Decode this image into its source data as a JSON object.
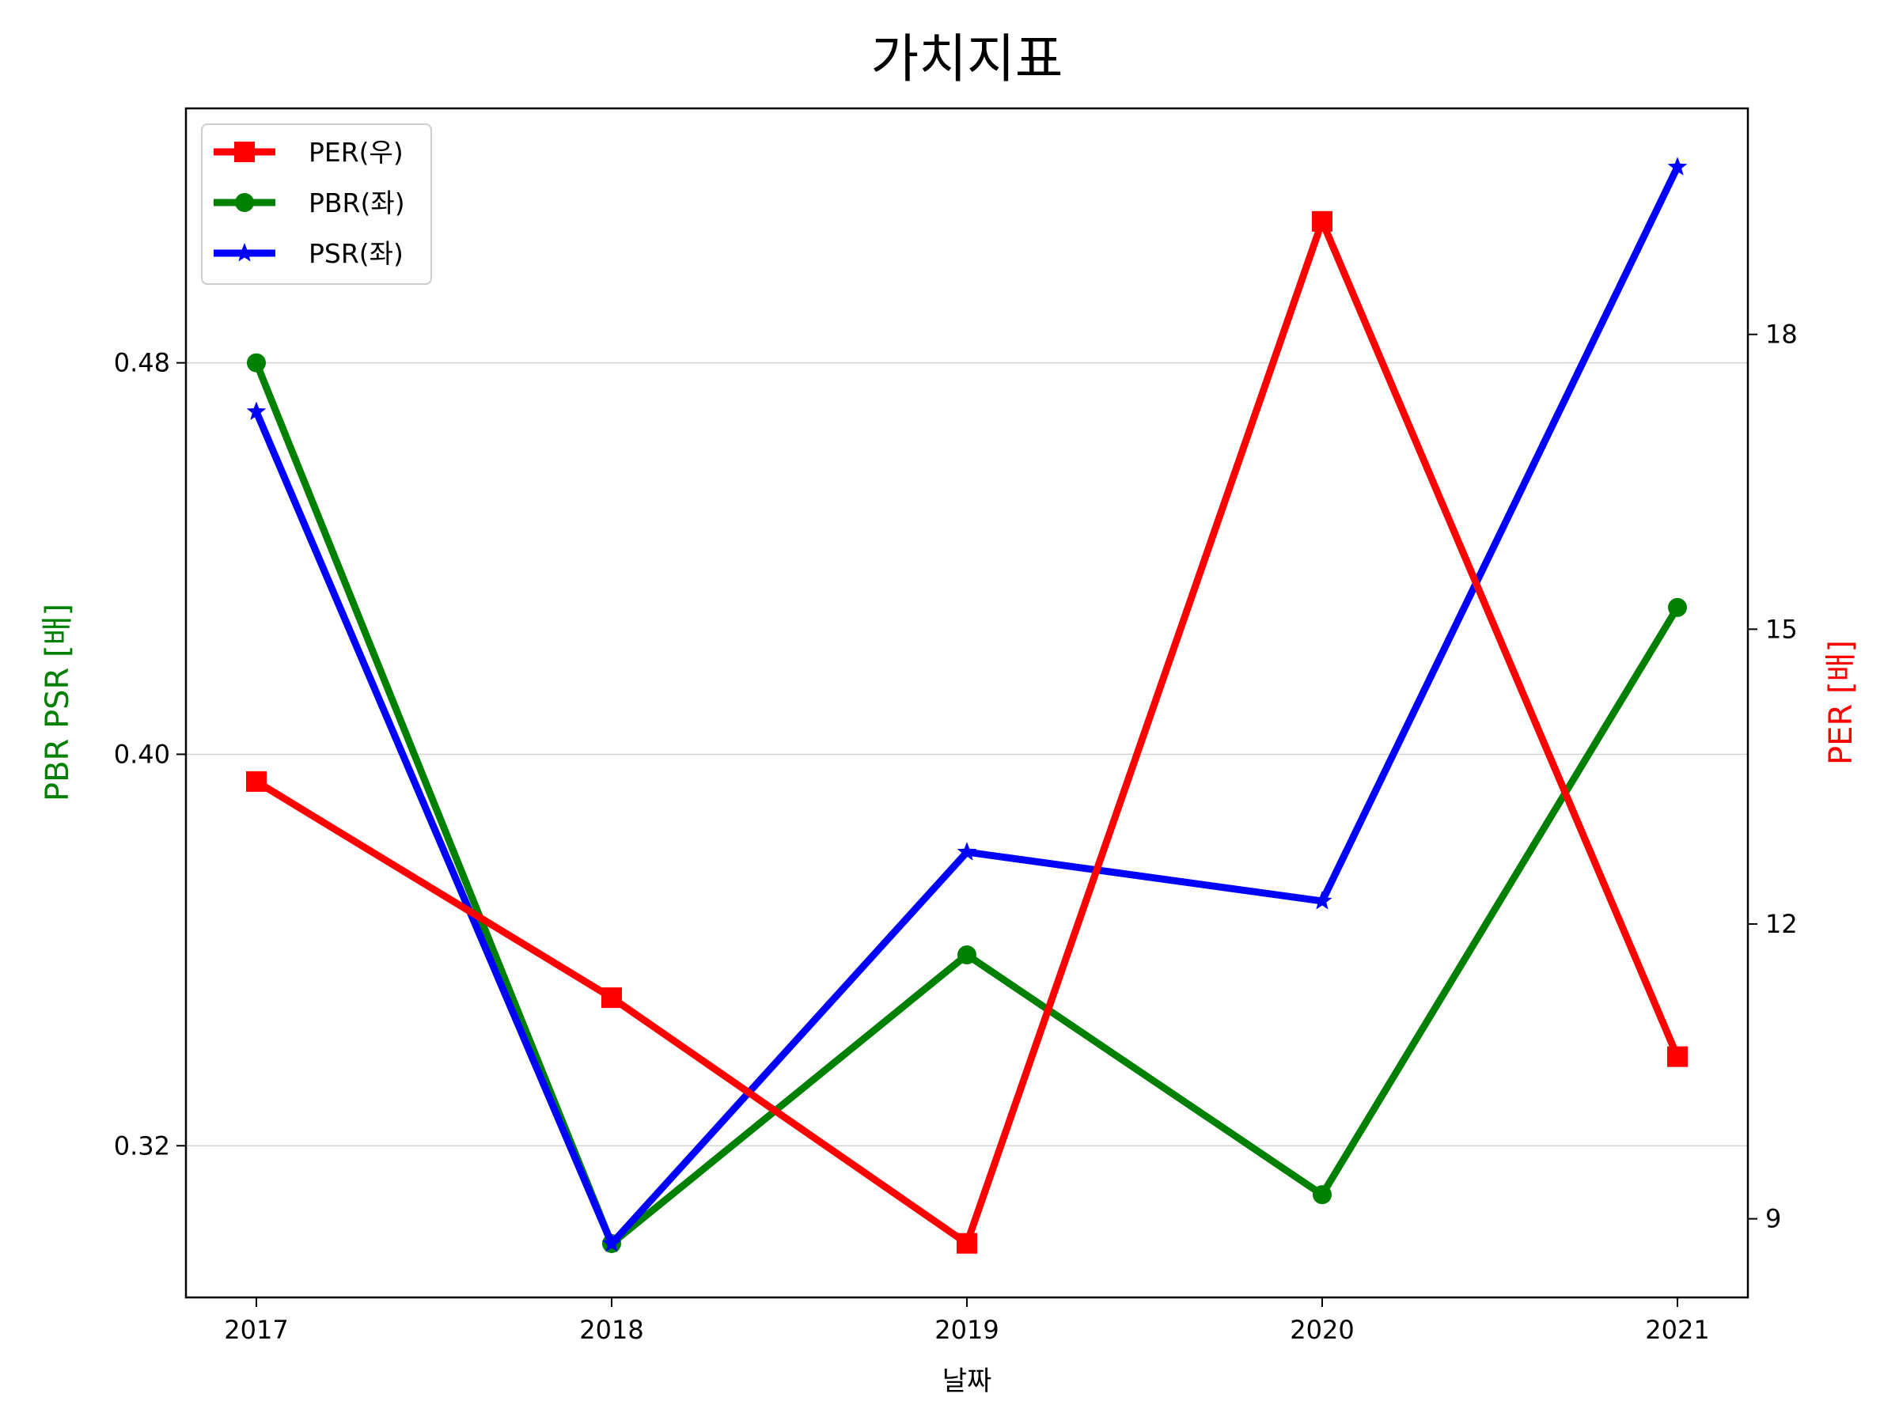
{
  "chart_data": {
    "type": "line",
    "title": "가치지표",
    "xlabel": "날짜",
    "ylabel_left": "PBR PSR [배]",
    "ylabel_right": "PER [배]",
    "colors": {
      "ylabel_left": "#008000",
      "ylabel_right": "#ff0000"
    },
    "categories": [
      "2017",
      "2018",
      "2019",
      "2020",
      "2021"
    ],
    "ylim_left": [
      0.289,
      0.532
    ],
    "ylim_right": [
      8.2,
      20.3
    ],
    "yticks_left": [
      0.32,
      0.4,
      0.48
    ],
    "yticks_left_labels": [
      "0.32",
      "0.40",
      "0.48"
    ],
    "yticks_right": [
      9,
      12,
      15,
      18
    ],
    "yticks_right_labels": [
      "9",
      "12",
      "15",
      "18"
    ],
    "grid": "horizontal (left axis)",
    "legend_position": "top-left",
    "series": [
      {
        "name": "PER(우)",
        "axis": "right",
        "color": "#ff0000",
        "marker": "square",
        "values": [
          13.45,
          11.25,
          8.75,
          19.15,
          10.65
        ]
      },
      {
        "name": "PBR(좌)",
        "axis": "left",
        "color": "#008000",
        "marker": "circle",
        "values": [
          0.48,
          0.3,
          0.359,
          0.31,
          0.43
        ]
      },
      {
        "name": "PSR(좌)",
        "axis": "left",
        "color": "#0000ff",
        "marker": "star",
        "values": [
          0.47,
          0.3,
          0.38,
          0.37,
          0.52
        ]
      }
    ]
  }
}
